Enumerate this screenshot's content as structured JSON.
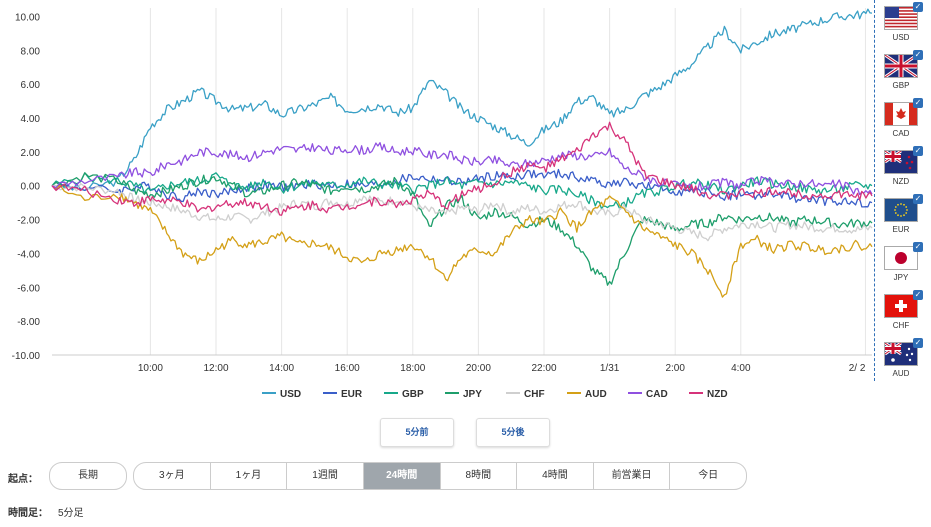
{
  "chart_data": {
    "type": "line",
    "title": "",
    "xlabel": "",
    "ylabel": "",
    "ylim": [
      -10,
      10.5
    ],
    "xlim": [
      7.0,
      32.0
    ],
    "grid": "vertical",
    "y_ticks": [
      "10.00",
      "8.00",
      "6.00",
      "4.00",
      "2.00",
      "0.00",
      "-2.00",
      "-4.00",
      "-6.00",
      "-8.00",
      "-10.00"
    ],
    "x_ticks": [
      {
        "label": "10:00",
        "at": 10
      },
      {
        "label": "12:00",
        "at": 12
      },
      {
        "label": "14:00",
        "at": 14
      },
      {
        "label": "16:00",
        "at": 16
      },
      {
        "label": "18:00",
        "at": 18
      },
      {
        "label": "20:00",
        "at": 20
      },
      {
        "label": "22:00",
        "at": 22
      },
      {
        "label": "1/31",
        "at": 24
      },
      {
        "label": "2:00",
        "at": 26
      },
      {
        "label": "4:00",
        "at": 28
      },
      {
        "label": "2/ 2",
        "at": 31.8
      }
    ],
    "x": [
      7.0,
      8.0,
      9.0,
      9.5,
      10.0,
      10.5,
      11.0,
      11.5,
      12.0,
      12.5,
      13.0,
      13.5,
      14.0,
      14.5,
      15.0,
      15.5,
      16.0,
      16.5,
      17.0,
      17.5,
      18.0,
      18.5,
      19.0,
      19.5,
      20.0,
      20.5,
      21.0,
      21.5,
      22.0,
      22.5,
      23.0,
      23.5,
      24.0,
      24.5,
      25.0,
      25.5,
      26.0,
      26.5,
      27.0,
      27.5,
      28.0,
      28.5,
      29.0,
      29.5,
      30.0,
      30.5,
      31.0,
      31.5,
      32.0
    ],
    "series": [
      {
        "name": "USD",
        "color": "#3aa0c6",
        "values": [
          0.0,
          -0.2,
          0.3,
          1.5,
          3.5,
          4.5,
          5.0,
          5.6,
          5.0,
          4.5,
          4.6,
          4.8,
          4.2,
          4.5,
          4.8,
          5.2,
          4.5,
          4.6,
          4.8,
          4.3,
          4.6,
          6.2,
          5.5,
          4.5,
          4.0,
          3.5,
          3.0,
          2.5,
          3.3,
          3.8,
          5.0,
          5.2,
          4.2,
          4.5,
          5.3,
          5.8,
          6.5,
          7.2,
          8.2,
          9.2,
          8.0,
          8.5,
          9.0,
          9.2,
          9.5,
          9.8,
          10.0,
          10.1,
          10.2
        ]
      },
      {
        "name": "EUR",
        "color": "#3a5ec9",
        "values": [
          0.0,
          -0.1,
          -0.3,
          -0.1,
          0.0,
          -0.5,
          -0.7,
          -0.3,
          -0.5,
          -0.3,
          -0.1,
          0.0,
          -0.1,
          0.0,
          0.1,
          0.0,
          0.1,
          0.0,
          0.1,
          0.3,
          0.5,
          0.4,
          0.3,
          0.2,
          0.4,
          0.6,
          0.5,
          0.7,
          0.6,
          0.7,
          0.5,
          0.3,
          0.1,
          0.2,
          0.0,
          -0.2,
          -0.3,
          -0.4,
          -0.4,
          -0.6,
          -0.5,
          -0.6,
          -0.5,
          -0.7,
          -0.8,
          -0.9,
          -0.9,
          -1.0,
          -1.0
        ]
      },
      {
        "name": "GBP",
        "color": "#17a88a",
        "values": [
          0.0,
          0.5,
          0.3,
          0.0,
          -0.4,
          0.0,
          0.2,
          0.3,
          0.6,
          0.0,
          -0.1,
          0.3,
          -0.2,
          0.0,
          0.2,
          0.0,
          0.1,
          0.3,
          0.1,
          0.0,
          -0.2,
          0.0,
          0.3,
          0.0,
          0.2,
          0.1,
          0.2,
          0.0,
          -0.3,
          -0.2,
          -0.5,
          -0.9,
          -1.3,
          -1.0,
          -0.5,
          -0.3,
          0.0,
          0.2,
          0.0,
          -0.3,
          0.0,
          0.3,
          0.1,
          0.0,
          -0.2,
          -0.3,
          -0.2,
          0.0,
          0.0
        ]
      },
      {
        "name": "JPY",
        "color": "#1e9e6b",
        "values": [
          0.0,
          0.6,
          0.3,
          -0.3,
          -0.5,
          -0.3,
          0.0,
          0.3,
          0.5,
          0.0,
          -0.5,
          -0.3,
          0.0,
          0.2,
          0.0,
          -0.3,
          0.0,
          -0.2,
          0.0,
          0.3,
          -0.5,
          -2.5,
          -1.2,
          -0.8,
          -2.0,
          -1.5,
          -1.8,
          -2.3,
          -2.0,
          -2.5,
          -3.5,
          -5.0,
          -5.8,
          -3.8,
          -2.0,
          -2.2,
          -2.6,
          -2.3,
          -2.2,
          -1.8,
          -2.0,
          -1.8,
          -1.9,
          -2.2,
          -2.0,
          -2.1,
          -2.3,
          -2.2,
          -2.2
        ]
      },
      {
        "name": "CHF",
        "color": "#cfcfcf",
        "values": [
          0.0,
          -0.1,
          -0.3,
          -0.8,
          -1.0,
          -1.2,
          -1.5,
          -1.8,
          -2.0,
          -1.8,
          -2.0,
          -1.6,
          -1.3,
          -1.0,
          -1.2,
          -0.9,
          -1.1,
          -0.6,
          -1.0,
          -0.8,
          -1.2,
          -1.5,
          -1.7,
          -1.3,
          -1.5,
          -1.0,
          -1.6,
          -1.3,
          -1.5,
          -1.2,
          -1.0,
          -1.5,
          -1.7,
          -1.3,
          -2.0,
          -2.2,
          -2.5,
          -2.8,
          -3.0,
          -2.5,
          -2.3,
          -2.2,
          -2.5,
          -2.3,
          -2.4,
          -2.5,
          -2.5,
          -2.6,
          -2.5
        ]
      },
      {
        "name": "AUD",
        "color": "#d4a017",
        "values": [
          0.0,
          -0.8,
          -0.5,
          -1.0,
          -1.5,
          -2.8,
          -4.0,
          -4.5,
          -3.8,
          -3.2,
          -3.5,
          -3.3,
          -3.0,
          -3.5,
          -3.4,
          -3.7,
          -4.2,
          -4.6,
          -4.0,
          -3.8,
          -3.5,
          -4.2,
          -5.5,
          -4.2,
          -3.8,
          -4.0,
          -2.8,
          -2.0,
          -2.2,
          -1.5,
          -2.5,
          -1.5,
          -0.8,
          -1.5,
          -2.5,
          -3.0,
          -3.5,
          -4.0,
          -5.0,
          -6.5,
          -3.5,
          -3.2,
          -3.8,
          -3.5,
          -3.6,
          -3.8,
          -3.7,
          -3.5,
          -3.6
        ]
      },
      {
        "name": "CAD",
        "color": "#8f50e0",
        "values": [
          0.0,
          0.3,
          0.5,
          0.8,
          0.7,
          1.3,
          1.5,
          2.0,
          2.0,
          1.8,
          1.7,
          2.0,
          2.2,
          2.1,
          2.3,
          2.0,
          2.2,
          2.1,
          2.3,
          2.0,
          2.1,
          1.8,
          1.9,
          1.5,
          1.4,
          1.5,
          1.2,
          1.3,
          1.5,
          1.8,
          1.8,
          1.7,
          2.0,
          1.0,
          0.6,
          0.2,
          0.0,
          -0.1,
          0.0,
          0.2,
          0.0,
          0.3,
          0.2,
          0.1,
          0.2,
          0.0,
          0.1,
          -0.3,
          -0.5
        ]
      },
      {
        "name": "NZD",
        "color": "#d6337a",
        "values": [
          0.0,
          -0.3,
          -0.8,
          -1.0,
          -0.8,
          -0.9,
          -1.0,
          -1.5,
          -1.2,
          -1.0,
          -1.0,
          -1.2,
          -1.5,
          -1.3,
          -1.1,
          -1.4,
          -1.2,
          -1.0,
          -0.9,
          -1.1,
          -0.8,
          -0.5,
          -1.2,
          -0.5,
          -0.2,
          0.2,
          0.8,
          1.2,
          1.0,
          1.5,
          2.0,
          3.0,
          3.5,
          2.5,
          0.8,
          0.3,
          0.0,
          -0.2,
          -0.5,
          -0.6,
          -0.4,
          -0.5,
          -0.3,
          -0.4,
          -0.5,
          -0.6,
          -0.5,
          -0.6,
          -0.6
        ]
      }
    ]
  },
  "flags": [
    {
      "code": "USD",
      "label": "USD",
      "check": "✓"
    },
    {
      "code": "GBP",
      "label": "GBP",
      "check": "✓"
    },
    {
      "code": "CAD",
      "label": "CAD",
      "check": "✓"
    },
    {
      "code": "NZD",
      "label": "NZD",
      "check": "✓"
    },
    {
      "code": "EUR",
      "label": "EUR",
      "check": "✓"
    },
    {
      "code": "JPY",
      "label": "JPY",
      "check": "✓"
    },
    {
      "code": "CHF",
      "label": "CHF",
      "check": "✓"
    },
    {
      "code": "AUD",
      "label": "AUD",
      "check": "✓"
    }
  ],
  "nav": {
    "prev_label": "5分前",
    "next_label": "5分後"
  },
  "controls": {
    "origin_label": "起点：",
    "long_label": "長期",
    "ranges": [
      "3ヶ月",
      "1ヶ月",
      "1週間",
      "24時間",
      "8時間",
      "4時間",
      "前営業日",
      "今日"
    ],
    "active_range": "24時間",
    "interval_label": "時間足：",
    "interval_value": "5分足"
  }
}
